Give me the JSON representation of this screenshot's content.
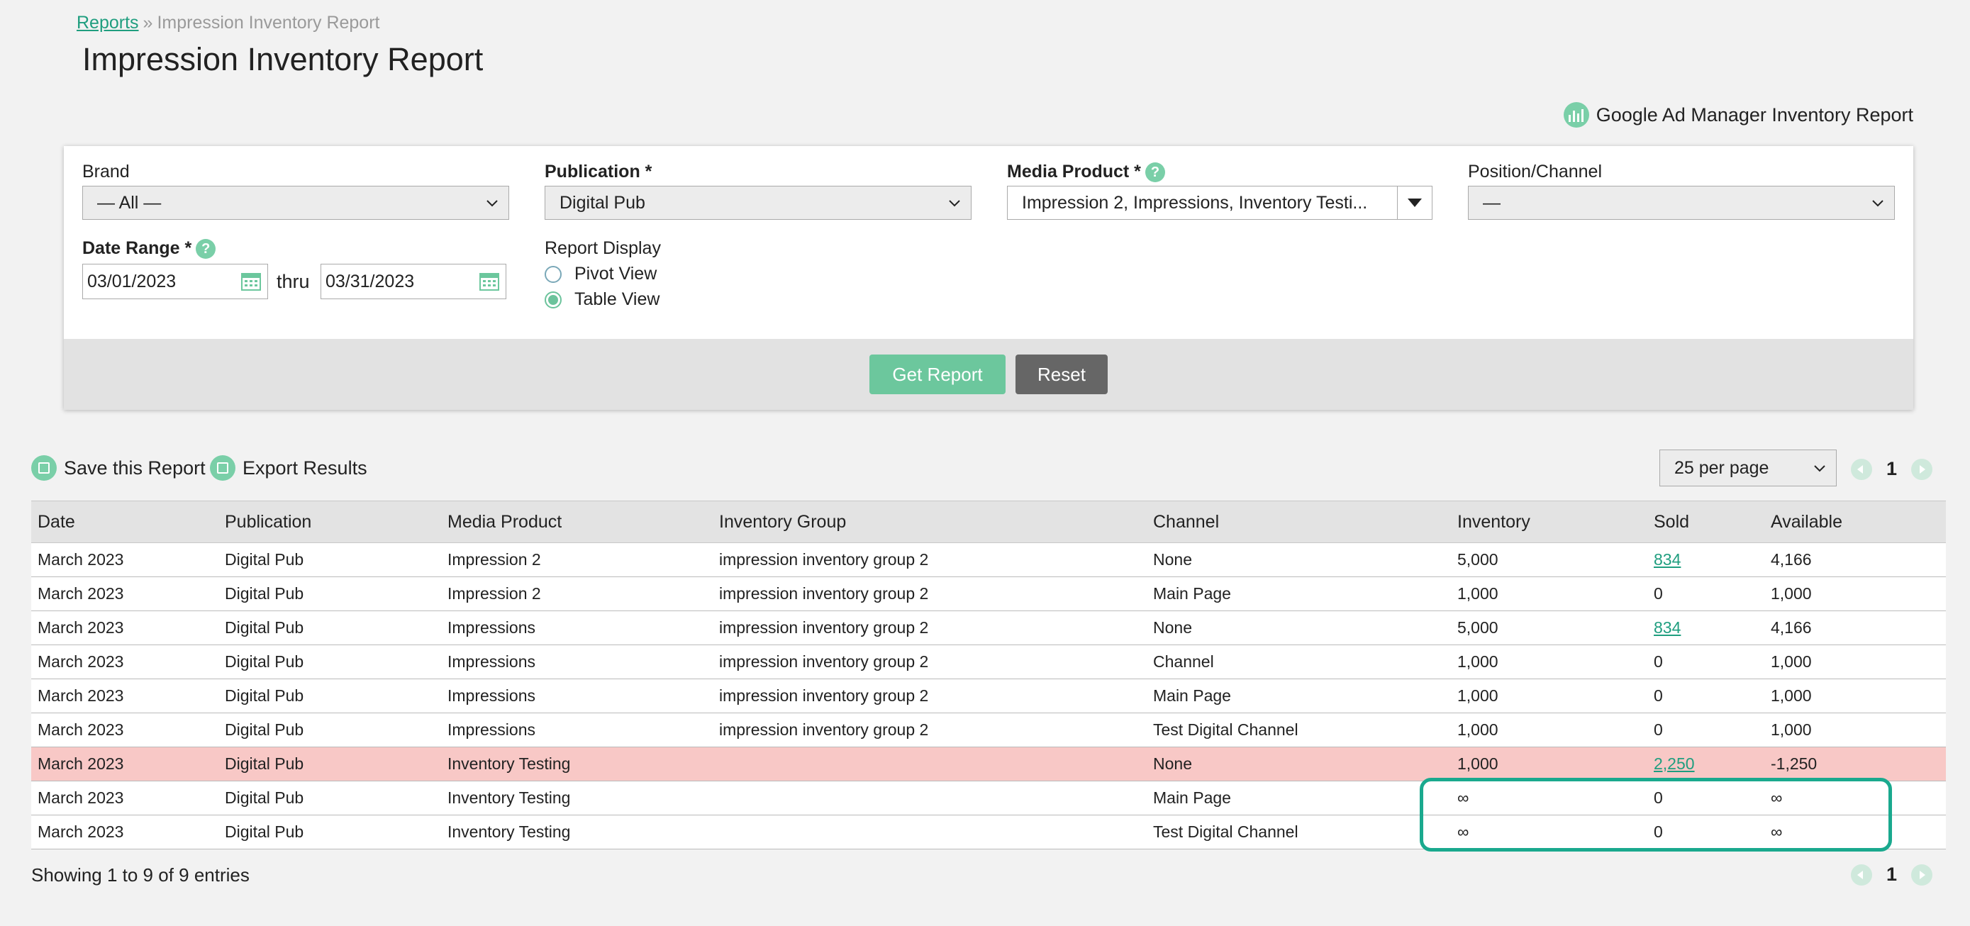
{
  "breadcrumb": {
    "link": "Reports",
    "sep": "»",
    "current": "Impression Inventory Report"
  },
  "page_title": "Impression Inventory Report",
  "gam_link": {
    "label": "Google Ad Manager Inventory Report",
    "icon": "bar-chart-icon"
  },
  "filters": {
    "brand": {
      "label": "Brand",
      "value": "— All —"
    },
    "publication": {
      "label": "Publication *",
      "value": "Digital Pub"
    },
    "media_product": {
      "label": "Media Product *",
      "value": "Impression 2, Impressions, Inventory Testi..."
    },
    "position_channel": {
      "label": "Position/Channel",
      "value": "—"
    },
    "date_range": {
      "label": "Date Range *",
      "start": "03/01/2023",
      "thru": "thru",
      "end": "03/31/2023"
    },
    "report_display": {
      "label": "Report Display",
      "options": [
        "Pivot View",
        "Table View"
      ],
      "selected": "Table View"
    },
    "help_glyph": "?"
  },
  "buttons": {
    "get_report": "Get Report",
    "reset": "Reset"
  },
  "actions": {
    "save": "Save this Report",
    "export": "Export Results"
  },
  "pagination": {
    "per_page": "25 per page",
    "page": "1"
  },
  "table": {
    "columns": [
      "Date",
      "Publication",
      "Media Product",
      "Inventory Group",
      "Channel",
      "Inventory",
      "Sold",
      "Available"
    ],
    "rows": [
      {
        "date": "March 2023",
        "publication": "Digital Pub",
        "media_product": "Impression 2",
        "inventory_group": "impression inventory group 2",
        "channel": "None",
        "inventory": "5,000",
        "sold": "834",
        "sold_link": true,
        "available": "4,166",
        "highlight": false
      },
      {
        "date": "March 2023",
        "publication": "Digital Pub",
        "media_product": "Impression 2",
        "inventory_group": "impression inventory group 2",
        "channel": "Main Page",
        "inventory": "1,000",
        "sold": "0",
        "sold_link": false,
        "available": "1,000",
        "highlight": false
      },
      {
        "date": "March 2023",
        "publication": "Digital Pub",
        "media_product": "Impressions",
        "inventory_group": "impression inventory group 2",
        "channel": "None",
        "inventory": "5,000",
        "sold": "834",
        "sold_link": true,
        "available": "4,166",
        "highlight": false
      },
      {
        "date": "March 2023",
        "publication": "Digital Pub",
        "media_product": "Impressions",
        "inventory_group": "impression inventory group 2",
        "channel": "Channel",
        "inventory": "1,000",
        "sold": "0",
        "sold_link": false,
        "available": "1,000",
        "highlight": false
      },
      {
        "date": "March 2023",
        "publication": "Digital Pub",
        "media_product": "Impressions",
        "inventory_group": "impression inventory group 2",
        "channel": "Main Page",
        "inventory": "1,000",
        "sold": "0",
        "sold_link": false,
        "available": "1,000",
        "highlight": false
      },
      {
        "date": "March 2023",
        "publication": "Digital Pub",
        "media_product": "Impressions",
        "inventory_group": "impression inventory group 2",
        "channel": "Test Digital Channel",
        "inventory": "1,000",
        "sold": "0",
        "sold_link": false,
        "available": "1,000",
        "highlight": false
      },
      {
        "date": "March 2023",
        "publication": "Digital Pub",
        "media_product": "Inventory Testing",
        "inventory_group": "",
        "channel": "None",
        "inventory": "1,000",
        "sold": "2,250",
        "sold_link": true,
        "available": "-1,250",
        "highlight": true
      },
      {
        "date": "March 2023",
        "publication": "Digital Pub",
        "media_product": "Inventory Testing",
        "inventory_group": "",
        "channel": "Main Page",
        "inventory": "∞",
        "sold": "0",
        "sold_link": false,
        "available": "∞",
        "highlight": false
      },
      {
        "date": "March 2023",
        "publication": "Digital Pub",
        "media_product": "Inventory Testing",
        "inventory_group": "",
        "channel": "Test Digital Channel",
        "inventory": "∞",
        "sold": "0",
        "sold_link": false,
        "available": "∞",
        "highlight": false
      }
    ]
  },
  "entries_text": "Showing 1 to 9 of 9 entries",
  "colors": {
    "accent": "#6cc79d",
    "link": "#1f9e7f",
    "warning_row": "#f8c8c6",
    "highlight_box": "#1aa98e"
  }
}
